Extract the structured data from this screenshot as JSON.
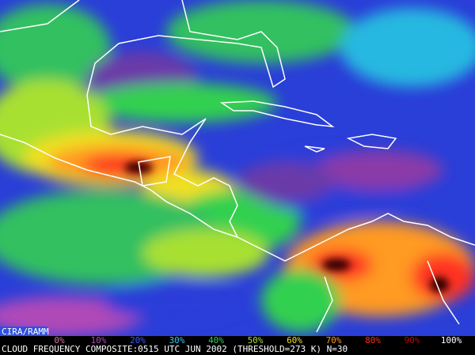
{
  "credit": "CIRA/RAMM",
  "legend": {
    "labels": [
      "0%",
      "10%",
      "20%",
      "30%",
      "40%",
      "50%",
      "60%",
      "70%",
      "80%",
      "90%",
      "100%"
    ],
    "colors": [
      "#d47aa0",
      "#b04ab8",
      "#3a5cff",
      "#38c8f0",
      "#30d050",
      "#a8e030",
      "#f0e020",
      "#ff9a20",
      "#ff3020",
      "#b01010",
      "#ffffff"
    ]
  },
  "caption": "CLOUD FREQUENCY COMPOSITE:0515 UTC JUN 2002 (THRESHOLD=273 K) N=30"
}
